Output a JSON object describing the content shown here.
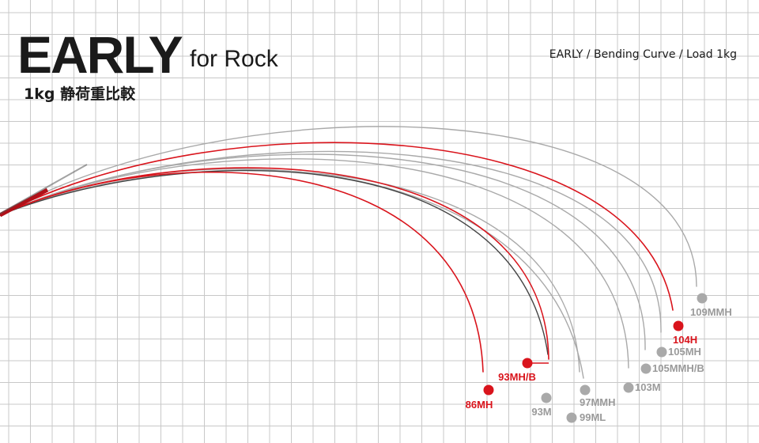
{
  "header": {
    "title_main": "EARLY",
    "title_sub": "for Rock",
    "subtitle": "1kg 静荷重比較",
    "caption": "EARLY / Bending Curve / Load 1kg"
  },
  "chart_data": {
    "type": "line",
    "title": "EARLY for Rock",
    "subtitle": "1kg 静荷重比較",
    "note": "EARLY / Bending Curve / Load 1kg",
    "grid": true,
    "legend": "labels at rod tips",
    "colors": {
      "highlight": "#d9141c",
      "standard": "#a9a9a9",
      "dark": "#444444"
    },
    "series": [
      {
        "name": "86MH",
        "color": "red"
      },
      {
        "name": "93MH/B",
        "color": "red"
      },
      {
        "name": "93M",
        "color": "dark"
      },
      {
        "name": "97MMH",
        "color": "gray"
      },
      {
        "name": "99ML",
        "color": "gray"
      },
      {
        "name": "103M",
        "color": "gray"
      },
      {
        "name": "105MMH/B",
        "color": "gray"
      },
      {
        "name": "105MH",
        "color": "gray"
      },
      {
        "name": "104H",
        "color": "red"
      },
      {
        "name": "109MMH",
        "color": "gray"
      }
    ]
  }
}
